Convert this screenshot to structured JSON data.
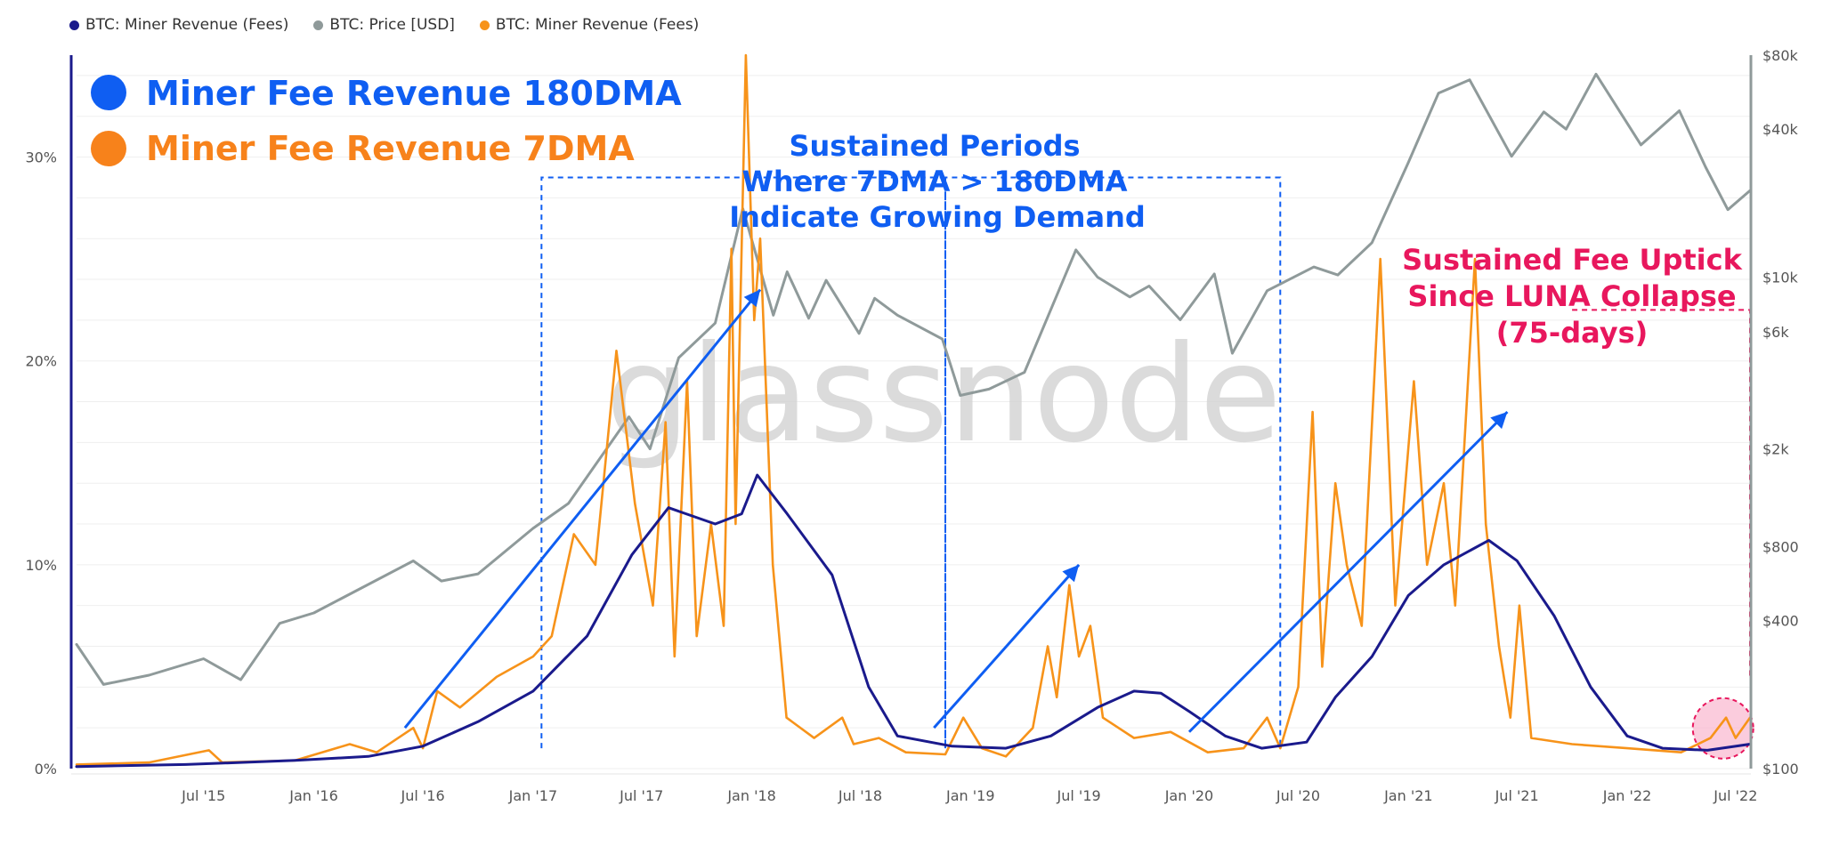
{
  "legend": [
    {
      "label": "BTC: Miner Revenue (Fees)",
      "color": "#1a1a8c"
    },
    {
      "label": "BTC: Price [USD]",
      "color": "#8f9a9a"
    },
    {
      "label": "BTC: Miner Revenue (Fees)",
      "color": "#f7931a"
    }
  ],
  "big_legend": [
    {
      "label": "Miner Fee Revenue 180DMA",
      "color": "#0f5ef2"
    },
    {
      "label": "Miner Fee Revenue 7DMA",
      "color": "#f7821b"
    }
  ],
  "annotations": {
    "sustained_lines": [
      "Sustained Periods",
      "Where 7DMA > 180DMA",
      "Indicate Growing Demand"
    ],
    "luna_lines": [
      "Sustained Fee Uptick",
      "Since LUNA Collapse",
      "(75-days)"
    ]
  },
  "watermark": "glassnode",
  "colors": {
    "ma180": "#1a1a8c",
    "price": "#8f9a9a",
    "ma7": "#f7931a",
    "annot_blue": "#0f5ef2",
    "annot_pink": "#e8175d"
  },
  "chart_data": {
    "type": "line",
    "x_range": [
      "2014-12-01",
      "2022-07-25"
    ],
    "x_ticks": [
      {
        "label": "Jul '15",
        "date": "2015-07-01"
      },
      {
        "label": "Jan '16",
        "date": "2016-01-01"
      },
      {
        "label": "Jul '16",
        "date": "2016-07-01"
      },
      {
        "label": "Jan '17",
        "date": "2017-01-01"
      },
      {
        "label": "Jul '17",
        "date": "2017-07-01"
      },
      {
        "label": "Jan '18",
        "date": "2018-01-01"
      },
      {
        "label": "Jul '18",
        "date": "2018-07-01"
      },
      {
        "label": "Jan '19",
        "date": "2019-01-01"
      },
      {
        "label": "Jul '19",
        "date": "2019-07-01"
      },
      {
        "label": "Jan '20",
        "date": "2020-01-01"
      },
      {
        "label": "Jul '20",
        "date": "2020-07-01"
      },
      {
        "label": "Jan '21",
        "date": "2021-01-01"
      },
      {
        "label": "Jul '21",
        "date": "2021-07-01"
      },
      {
        "label": "Jan '22",
        "date": "2022-01-01"
      },
      {
        "label": "Jul '22",
        "date": "2022-07-01"
      }
    ],
    "y_left": {
      "min": 0,
      "max": 35,
      "ticks": [
        {
          "label": "0%",
          "value": 0
        },
        {
          "label": "10%",
          "value": 10
        },
        {
          "label": "20%",
          "value": 20
        },
        {
          "label": "30%",
          "value": 30
        }
      ]
    },
    "y_right": {
      "scale": "log",
      "min": 100,
      "max": 80000,
      "ticks": [
        {
          "label": "$100",
          "value": 100
        },
        {
          "label": "$400",
          "value": 400
        },
        {
          "label": "$800",
          "value": 800
        },
        {
          "label": "$2k",
          "value": 2000
        },
        {
          "label": "$6k",
          "value": 6000
        },
        {
          "label": "$10k",
          "value": 10000
        },
        {
          "label": "$40k",
          "value": 40000
        },
        {
          "label": "$80k",
          "value": 80000
        }
      ]
    },
    "series": [
      {
        "name": "BTC: Miner Revenue (Fees)",
        "axis": "left",
        "points": [
          [
            "2014-12-01",
            0.1
          ],
          [
            "2015-06-01",
            0.2
          ],
          [
            "2015-12-01",
            0.4
          ],
          [
            "2016-04-01",
            0.6
          ],
          [
            "2016-07-01",
            1.1
          ],
          [
            "2016-10-01",
            2.3
          ],
          [
            "2017-01-01",
            3.8
          ],
          [
            "2017-04-01",
            6.5
          ],
          [
            "2017-06-15",
            10.5
          ],
          [
            "2017-08-15",
            12.8
          ],
          [
            "2017-11-01",
            12.0
          ],
          [
            "2017-12-15",
            12.5
          ],
          [
            "2018-01-10",
            14.4
          ],
          [
            "2018-03-01",
            12.5
          ],
          [
            "2018-05-15",
            9.5
          ],
          [
            "2018-07-15",
            4.0
          ],
          [
            "2018-09-01",
            1.6
          ],
          [
            "2018-12-01",
            1.1
          ],
          [
            "2019-03-01",
            1.0
          ],
          [
            "2019-05-15",
            1.6
          ],
          [
            "2019-08-01",
            3.0
          ],
          [
            "2019-10-01",
            3.8
          ],
          [
            "2019-11-15",
            3.7
          ],
          [
            "2020-01-01",
            2.8
          ],
          [
            "2020-03-01",
            1.6
          ],
          [
            "2020-05-01",
            1.0
          ],
          [
            "2020-07-15",
            1.3
          ],
          [
            "2020-09-01",
            3.5
          ],
          [
            "2020-11-01",
            5.5
          ],
          [
            "2021-01-01",
            8.5
          ],
          [
            "2021-03-01",
            10.0
          ],
          [
            "2021-05-15",
            11.2
          ],
          [
            "2021-07-01",
            10.2
          ],
          [
            "2021-09-01",
            7.5
          ],
          [
            "2021-11-01",
            4.0
          ],
          [
            "2022-01-01",
            1.6
          ],
          [
            "2022-03-01",
            1.0
          ],
          [
            "2022-05-15",
            0.9
          ],
          [
            "2022-07-25",
            1.2
          ]
        ]
      },
      {
        "name": "BTC: Price [USD]",
        "axis": "right",
        "points": [
          [
            "2014-12-01",
            320
          ],
          [
            "2015-01-15",
            220
          ],
          [
            "2015-04-01",
            240
          ],
          [
            "2015-07-01",
            280
          ],
          [
            "2015-09-01",
            230
          ],
          [
            "2015-11-05",
            390
          ],
          [
            "2016-01-01",
            430
          ],
          [
            "2016-06-15",
            700
          ],
          [
            "2016-08-01",
            580
          ],
          [
            "2016-10-01",
            620
          ],
          [
            "2017-01-01",
            950
          ],
          [
            "2017-03-01",
            1200
          ],
          [
            "2017-06-10",
            2700
          ],
          [
            "2017-07-15",
            2000
          ],
          [
            "2017-09-01",
            4700
          ],
          [
            "2017-11-01",
            6500
          ],
          [
            "2017-12-17",
            19000
          ],
          [
            "2018-02-06",
            7000
          ],
          [
            "2018-03-01",
            10500
          ],
          [
            "2018-04-06",
            6800
          ],
          [
            "2018-05-05",
            9700
          ],
          [
            "2018-06-29",
            5900
          ],
          [
            "2018-07-25",
            8200
          ],
          [
            "2018-09-01",
            7000
          ],
          [
            "2018-11-15",
            5600
          ],
          [
            "2018-12-15",
            3300
          ],
          [
            "2019-02-01",
            3500
          ],
          [
            "2019-04-01",
            4100
          ],
          [
            "2019-06-26",
            12900
          ],
          [
            "2019-08-01",
            10000
          ],
          [
            "2019-09-24",
            8300
          ],
          [
            "2019-10-26",
            9200
          ],
          [
            "2019-12-17",
            6700
          ],
          [
            "2020-02-12",
            10300
          ],
          [
            "2020-03-13",
            4900
          ],
          [
            "2020-05-10",
            8800
          ],
          [
            "2020-07-27",
            11000
          ],
          [
            "2020-09-05",
            10200
          ],
          [
            "2020-11-01",
            13800
          ],
          [
            "2020-12-31",
            29000
          ],
          [
            "2021-02-20",
            56000
          ],
          [
            "2021-04-13",
            63500
          ],
          [
            "2021-06-22",
            31000
          ],
          [
            "2021-08-15",
            47000
          ],
          [
            "2021-09-21",
            40000
          ],
          [
            "2021-11-10",
            67000
          ],
          [
            "2022-01-24",
            34500
          ],
          [
            "2022-03-29",
            47500
          ],
          [
            "2022-05-12",
            28000
          ],
          [
            "2022-06-18",
            18800
          ],
          [
            "2022-07-25",
            22500
          ]
        ]
      },
      {
        "name": "BTC: Miner Revenue (Fees)",
        "axis": "left",
        "points": [
          [
            "2014-12-01",
            0.2
          ],
          [
            "2015-04-01",
            0.3
          ],
          [
            "2015-07-10",
            0.9
          ],
          [
            "2015-08-01",
            0.3
          ],
          [
            "2015-12-01",
            0.4
          ],
          [
            "2016-03-01",
            1.2
          ],
          [
            "2016-04-15",
            0.8
          ],
          [
            "2016-06-15",
            2.0
          ],
          [
            "2016-07-01",
            1.0
          ],
          [
            "2016-07-25",
            3.8
          ],
          [
            "2016-09-01",
            3.0
          ],
          [
            "2016-11-01",
            4.5
          ],
          [
            "2017-01-01",
            5.5
          ],
          [
            "2017-02-01",
            6.5
          ],
          [
            "2017-03-10",
            11.5
          ],
          [
            "2017-04-15",
            10.0
          ],
          [
            "2017-05-20",
            20.5
          ],
          [
            "2017-06-20",
            13.0
          ],
          [
            "2017-07-20",
            8.0
          ],
          [
            "2017-08-10",
            17.0
          ],
          [
            "2017-08-25",
            5.5
          ],
          [
            "2017-09-15",
            19.0
          ],
          [
            "2017-10-01",
            6.5
          ],
          [
            "2017-10-25",
            12.0
          ],
          [
            "2017-11-15",
            7.0
          ],
          [
            "2017-11-28",
            25.5
          ],
          [
            "2017-12-05",
            12.0
          ],
          [
            "2017-12-22",
            35.0
          ],
          [
            "2018-01-05",
            22.0
          ],
          [
            "2018-01-15",
            26.0
          ],
          [
            "2018-02-05",
            10.0
          ],
          [
            "2018-02-28",
            2.5
          ],
          [
            "2018-04-15",
            1.5
          ],
          [
            "2018-06-01",
            2.5
          ],
          [
            "2018-06-20",
            1.2
          ],
          [
            "2018-08-01",
            1.5
          ],
          [
            "2018-09-15",
            0.8
          ],
          [
            "2018-11-20",
            0.7
          ],
          [
            "2018-12-20",
            2.5
          ],
          [
            "2019-01-20",
            1.0
          ],
          [
            "2019-03-01",
            0.6
          ],
          [
            "2019-04-15",
            2.0
          ],
          [
            "2019-05-10",
            6.0
          ],
          [
            "2019-05-25",
            3.5
          ],
          [
            "2019-06-15",
            9.0
          ],
          [
            "2019-07-01",
            5.5
          ],
          [
            "2019-07-20",
            7.0
          ],
          [
            "2019-08-10",
            2.5
          ],
          [
            "2019-10-01",
            1.5
          ],
          [
            "2019-12-01",
            1.8
          ],
          [
            "2020-02-01",
            0.8
          ],
          [
            "2020-04-01",
            1.0
          ],
          [
            "2020-05-10",
            2.5
          ],
          [
            "2020-06-01",
            1.0
          ],
          [
            "2020-07-01",
            4.0
          ],
          [
            "2020-07-25",
            17.5
          ],
          [
            "2020-08-10",
            5.0
          ],
          [
            "2020-09-01",
            14.0
          ],
          [
            "2020-09-20",
            10.0
          ],
          [
            "2020-10-15",
            7.0
          ],
          [
            "2020-11-15",
            25.0
          ],
          [
            "2020-12-10",
            8.0
          ],
          [
            "2021-01-10",
            19.0
          ],
          [
            "2021-02-01",
            10.0
          ],
          [
            "2021-03-01",
            14.0
          ],
          [
            "2021-03-20",
            8.0
          ],
          [
            "2021-04-22",
            25.0
          ],
          [
            "2021-05-10",
            12.0
          ],
          [
            "2021-06-01",
            6.0
          ],
          [
            "2021-06-20",
            2.5
          ],
          [
            "2021-07-05",
            8.0
          ],
          [
            "2021-07-25",
            1.5
          ],
          [
            "2021-10-01",
            1.2
          ],
          [
            "2022-01-01",
            1.0
          ],
          [
            "2022-04-01",
            0.8
          ],
          [
            "2022-05-20",
            1.5
          ],
          [
            "2022-06-15",
            2.5
          ],
          [
            "2022-07-01",
            1.5
          ],
          [
            "2022-07-25",
            2.5
          ]
        ]
      }
    ],
    "arrows": [
      {
        "from": [
          "2016-06-01",
          2.0
        ],
        "to": [
          "2018-01-15",
          23.5
        ]
      },
      {
        "from": [
          "2018-11-01",
          2.0
        ],
        "to": [
          "2019-07-01",
          10.0
        ]
      },
      {
        "from": [
          "2020-01-01",
          1.8
        ],
        "to": [
          "2021-06-15",
          17.5
        ]
      }
    ],
    "regions": [
      {
        "start": "2017-01-15",
        "end": "2018-11-20",
        "top": 29.0,
        "bottom": 1.0
      },
      {
        "start": "2018-11-20",
        "end": "2020-06-01",
        "top": 29.0,
        "bottom": 1.0
      },
      {
        "start": "2021-10-01",
        "end": "2022-07-25",
        "top": 22.5,
        "bottom": 4.5,
        "style": "pink"
      }
    ],
    "highlight": {
      "center": [
        "2022-06-10",
        1.8
      ]
    }
  }
}
